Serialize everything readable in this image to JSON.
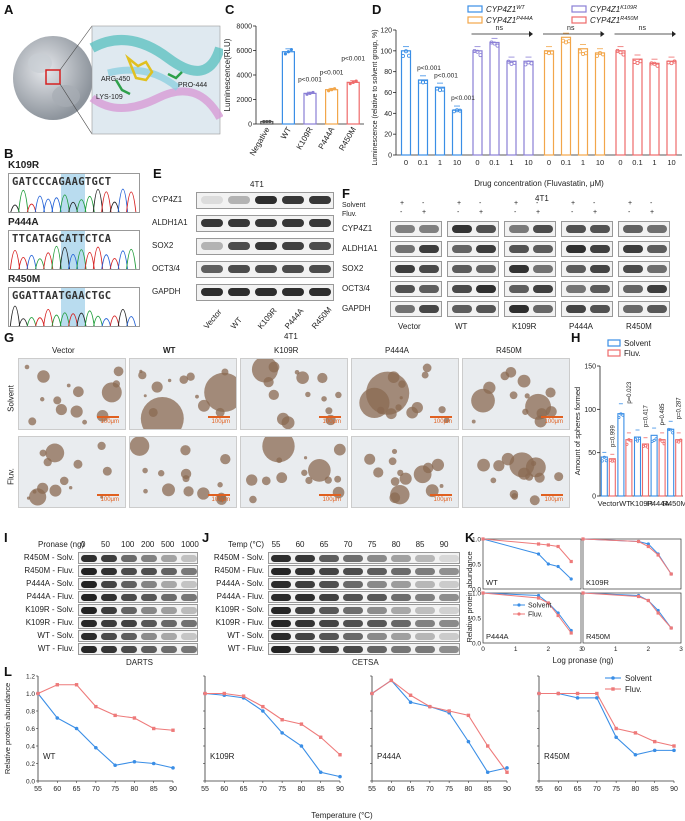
{
  "panels": {
    "A": "A",
    "B": "B",
    "C": "C",
    "D": "D",
    "E": "E",
    "F": "F",
    "G": "G",
    "H": "H",
    "I": "I",
    "J": "J",
    "K": "K",
    "L": "L"
  },
  "panel_a": {
    "labels": [
      "ARG-450",
      "LYS-109",
      "PRO-444"
    ]
  },
  "panel_b": {
    "mutations": [
      {
        "name": "K109R",
        "sequence": "GATCCCAGAAGTGCT"
      },
      {
        "name": "P444A",
        "sequence": "TTCATAGCATTCTCA"
      },
      {
        "name": "R450M",
        "sequence": "GGATTAATGAACTGC"
      }
    ]
  },
  "panel_e": {
    "cell_line": "4T1",
    "proteins": [
      "CYP4Z1",
      "ALDH1A1",
      "SOX2",
      "OCT3/4",
      "GAPDH"
    ],
    "lanes": [
      "Vector",
      "WT",
      "K109R",
      "P444A",
      "R450M"
    ]
  },
  "panel_f": {
    "cell_line": "4T1",
    "solvent_label": "Solvent",
    "fluv_label": "Fluv.",
    "plus": "+",
    "minus": "-",
    "proteins": [
      "CYP4Z1",
      "ALDH1A1",
      "SOX2",
      "OCT3/4",
      "GAPDH"
    ],
    "groups": [
      "Vector",
      "WT",
      "K109R",
      "P444A",
      "R450M"
    ]
  },
  "panel_g": {
    "cell_line": "4T1",
    "columns": [
      "Vector",
      "WT",
      "K109R",
      "P444A",
      "R450M"
    ],
    "rows": [
      "Solvent",
      "Fluv."
    ],
    "scale": "100μm"
  },
  "panel_i": {
    "xlabel": "Pronase (ng)",
    "doses": [
      "0",
      "50",
      "100",
      "200",
      "500",
      "1000"
    ],
    "rows": [
      "R450M - Solv.",
      "R450M - Fluv.",
      "P444A - Solv.",
      "P444A - Fluv.",
      "K109R - Solv.",
      "K109R - Fluv.",
      "WT - Solv.",
      "WT - Fluv."
    ],
    "caption": "DARTS"
  },
  "panel_j": {
    "xlabel": "Temp (°C)",
    "temps": [
      "55",
      "60",
      "65",
      "70",
      "75",
      "80",
      "85",
      "90"
    ],
    "rows": [
      "R450M - Solv.",
      "R450M - Fluv.",
      "P444A - Solv.",
      "P444A - Fluv.",
      "K109R - Solv.",
      "K109R - Fluv.",
      "WT - Solv.",
      "WT - Fluv."
    ],
    "caption": "CETSA"
  },
  "chart_data": [
    {
      "id": "C",
      "type": "bar",
      "ylabel": "Luminescence(RLU)",
      "categories": [
        "Negative",
        "WT",
        "K109R",
        "P444A",
        "R450M"
      ],
      "values": [
        200,
        5900,
        2500,
        2800,
        3400
      ],
      "colors": [
        "#555555",
        "#3a8ee6",
        "#8a7fd6",
        "#f2a64a",
        "#ee6a6a"
      ],
      "ylim": [
        0,
        8000
      ],
      "yticks": [
        "0",
        "2000",
        "4000",
        "6000",
        "8000"
      ],
      "annotations": [
        "p<0.001",
        "p<0.001",
        "p<0.001"
      ]
    },
    {
      "id": "D",
      "type": "bar",
      "ylabel": "Luminescence (relative to solvent group, %)",
      "xlabel": "Drug concentration (Fluvastatin, μM)",
      "categories": [
        "0",
        "0.1",
        "1",
        "10"
      ],
      "ylim": [
        0,
        120
      ],
      "yticks": [
        "0",
        "20",
        "40",
        "60",
        "80",
        "100",
        "120"
      ],
      "series": [
        {
          "name": "CYP4Z1WT",
          "base": "CYP4Z1",
          "sup": "WT",
          "color": "#3a8ee6",
          "values": [
            100,
            72,
            65,
            43
          ]
        },
        {
          "name": "CYP4Z1K109R",
          "base": "CYP4Z1",
          "sup": "K109R",
          "color": "#8a7fd6",
          "values": [
            100,
            108,
            90,
            90
          ]
        },
        {
          "name": "CYP4Z1P444A",
          "base": "CYP4Z1",
          "sup": "P444A",
          "color": "#f2a64a",
          "values": [
            100,
            113,
            102,
            98
          ]
        },
        {
          "name": "CYP4Z1R450M",
          "base": "CYP4Z1",
          "sup": "R450M",
          "color": "#ee6a6a",
          "values": [
            100,
            92,
            88,
            90
          ]
        }
      ],
      "annotations": [
        "p<0.001",
        "p<0.001",
        "p<0.001",
        "ns",
        "ns",
        "ns"
      ]
    },
    {
      "id": "H",
      "type": "bar",
      "ylabel": "Amount of spheres formed",
      "categories": [
        "Vector",
        "WT",
        "K109R",
        "P444A",
        "R450M"
      ],
      "ylim": [
        0,
        150
      ],
      "yticks": [
        "0",
        "50",
        "100",
        "150"
      ],
      "series": [
        {
          "name": "Solvent",
          "color": "#3a8ee6",
          "values": [
            45,
            95,
            68,
            70,
            77
          ]
        },
        {
          "name": "Fluv.",
          "color": "#ee6a6a",
          "values": [
            43,
            65,
            60,
            65,
            65
          ]
        }
      ],
      "annotations": [
        "p=0.999",
        "p=0.023",
        "p=0.417",
        "p=0.485",
        "p=0.287"
      ]
    },
    {
      "id": "K",
      "type": "line",
      "ylabel": "Relative protein abundance",
      "xlabel": "Log pronase (ng)",
      "xlim": [
        0,
        3
      ],
      "ylim": [
        0,
        1.0
      ],
      "xticks": [
        "0",
        "1",
        "2",
        "3"
      ],
      "yticks": [
        "0.0",
        "0.5",
        "1.0"
      ],
      "subplots": [
        {
          "label": "WT",
          "solvent": [
            [
              0,
              1.0
            ],
            [
              1.7,
              0.7
            ],
            [
              2.0,
              0.5
            ],
            [
              2.3,
              0.45
            ],
            [
              2.7,
              0.2
            ]
          ],
          "fluv": [
            [
              0,
              1.0
            ],
            [
              1.7,
              0.9
            ],
            [
              2.0,
              0.88
            ],
            [
              2.3,
              0.85
            ],
            [
              2.7,
              0.55
            ]
          ]
        },
        {
          "label": "K109R",
          "solvent": [
            [
              0,
              1.0
            ],
            [
              1.7,
              0.95
            ],
            [
              2.0,
              0.9
            ],
            [
              2.3,
              0.7
            ],
            [
              2.7,
              0.3
            ]
          ],
          "fluv": [
            [
              0,
              1.0
            ],
            [
              1.7,
              0.95
            ],
            [
              2.0,
              0.85
            ],
            [
              2.3,
              0.68
            ],
            [
              2.7,
              0.3
            ]
          ]
        },
        {
          "label": "P444A",
          "solvent": [
            [
              0,
              1.0
            ],
            [
              1.7,
              0.95
            ],
            [
              2.0,
              0.8
            ],
            [
              2.3,
              0.6
            ],
            [
              2.7,
              0.25
            ]
          ],
          "fluv": [
            [
              0,
              1.0
            ],
            [
              1.7,
              0.9
            ],
            [
              2.0,
              0.8
            ],
            [
              2.3,
              0.55
            ],
            [
              2.7,
              0.2
            ]
          ]
        },
        {
          "label": "R450M",
          "solvent": [
            [
              0,
              1.0
            ],
            [
              1.7,
              0.95
            ],
            [
              2.0,
              0.85
            ],
            [
              2.3,
              0.65
            ],
            [
              2.7,
              0.3
            ]
          ],
          "fluv": [
            [
              0,
              1.0
            ],
            [
              1.7,
              0.93
            ],
            [
              2.0,
              0.85
            ],
            [
              2.3,
              0.6
            ],
            [
              2.7,
              0.3
            ]
          ]
        }
      ],
      "legend": [
        "Solvent",
        "Fluv."
      ]
    },
    {
      "id": "L",
      "type": "line",
      "ylabel": "Relative protein abundance",
      "xlabel": "Temperature (°C)",
      "x": [
        55,
        60,
        65,
        70,
        75,
        80,
        85,
        90
      ],
      "xticks": [
        "55",
        "60",
        "65",
        "70",
        "75",
        "80",
        "85",
        "90"
      ],
      "ylim": [
        0,
        1.2
      ],
      "yticks": [
        "0.0",
        "0.2",
        "0.4",
        "0.6",
        "0.8",
        "1.0",
        "1.2"
      ],
      "legend": [
        "Solvent",
        "Fluv."
      ],
      "subplots": [
        {
          "label": "WT",
          "solvent": [
            1.0,
            0.72,
            0.6,
            0.38,
            0.18,
            0.22,
            0.2,
            0.15
          ],
          "fluv": [
            1.0,
            1.1,
            1.1,
            0.85,
            0.75,
            0.72,
            0.6,
            0.58
          ]
        },
        {
          "label": "K109R",
          "solvent": [
            1.0,
            0.98,
            0.95,
            0.8,
            0.55,
            0.4,
            0.1,
            0.05
          ],
          "fluv": [
            1.0,
            1.0,
            0.97,
            0.85,
            0.7,
            0.65,
            0.5,
            0.3
          ]
        },
        {
          "label": "P444A",
          "solvent": [
            1.0,
            1.15,
            0.9,
            0.85,
            0.78,
            0.45,
            0.1,
            0.15
          ],
          "fluv": [
            1.0,
            1.15,
            0.98,
            0.85,
            0.8,
            0.75,
            0.4,
            0.1
          ]
        },
        {
          "label": "R450M",
          "solvent": [
            1.0,
            1.0,
            0.95,
            0.95,
            0.5,
            0.3,
            0.35,
            0.35
          ],
          "fluv": [
            1.0,
            1.0,
            1.0,
            1.0,
            0.6,
            0.55,
            0.45,
            0.4
          ]
        }
      ]
    }
  ]
}
